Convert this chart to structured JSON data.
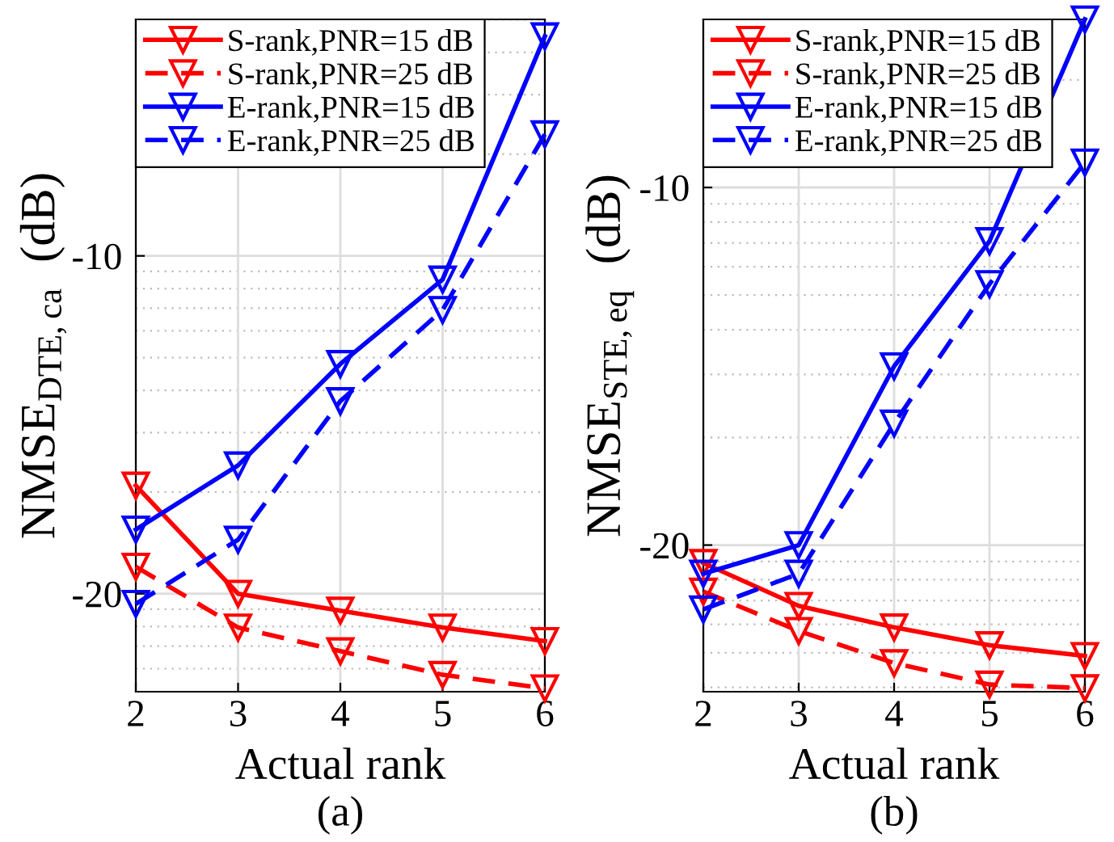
{
  "chart_data": [
    {
      "type": "line",
      "xlabel": "Actual rank",
      "ylabel": "NMSE$_{DTE,ca}$  (dB)",
      "annotations": [
        "(a)"
      ],
      "x": [
        2,
        3,
        4,
        5,
        6
      ],
      "xlim": [
        2,
        6
      ],
      "xticks": [
        2,
        3,
        4,
        5,
        6
      ],
      "ylim": [
        -22.9,
        -3.0
      ],
      "yticks": [
        -20,
        -10
      ],
      "grid": true,
      "legend": "top left",
      "marker": "triangle",
      "series": [
        {
          "name": "S-rank,PNR=15 dB",
          "color": "#ff0000",
          "line_style": "solid",
          "values": [
            -16.8,
            -20.0,
            -20.5,
            -21.0,
            -21.4
          ]
        },
        {
          "name": "S-rank,PNR=25 dB",
          "color": "#ff0000",
          "line_style": "dashed",
          "values": [
            -19.2,
            -21.0,
            -21.7,
            -22.4,
            -22.8
          ]
        },
        {
          "name": "E-rank,PNR=15 dB",
          "color": "#0000ff",
          "line_style": "solid",
          "values": [
            -18.1,
            -16.2,
            -13.2,
            -10.7,
            -3.5
          ]
        },
        {
          "name": "E-rank,PNR=25 dB",
          "color": "#0000ff",
          "line_style": "dashed",
          "values": [
            -20.3,
            -18.4,
            -14.3,
            -11.6,
            -6.4
          ]
        }
      ]
    },
    {
      "type": "line",
      "xlabel": "Actual rank",
      "ylabel": "NMSE$_{STE,eq}$  (dB)",
      "annotations": [
        "(b)"
      ],
      "x": [
        2,
        3,
        4,
        5,
        6
      ],
      "xlim": [
        2,
        6
      ],
      "xticks": [
        2,
        3,
        4,
        5,
        6
      ],
      "ylim": [
        -24.1,
        -5.3
      ],
      "yticks": [
        -20,
        -10
      ],
      "grid": true,
      "legend": "top left",
      "marker": "triangle",
      "series": [
        {
          "name": "S-rank,PNR=15 dB",
          "color": "#ff0000",
          "line_style": "solid",
          "values": [
            -20.5,
            -21.7,
            -22.3,
            -22.8,
            -23.1
          ]
        },
        {
          "name": "S-rank,PNR=25 dB",
          "color": "#ff0000",
          "line_style": "dashed",
          "values": [
            -21.3,
            -22.4,
            -23.3,
            -23.9,
            -24.0
          ]
        },
        {
          "name": "E-rank,PNR=15 dB",
          "color": "#0000ff",
          "line_style": "solid",
          "values": [
            -20.8,
            -20.0,
            -15.0,
            -11.5,
            -5.3
          ]
        },
        {
          "name": "E-rank,PNR=25 dB",
          "color": "#0000ff",
          "line_style": "dashed",
          "values": [
            -21.8,
            -20.8,
            -16.6,
            -12.7,
            -9.3
          ]
        }
      ]
    }
  ]
}
